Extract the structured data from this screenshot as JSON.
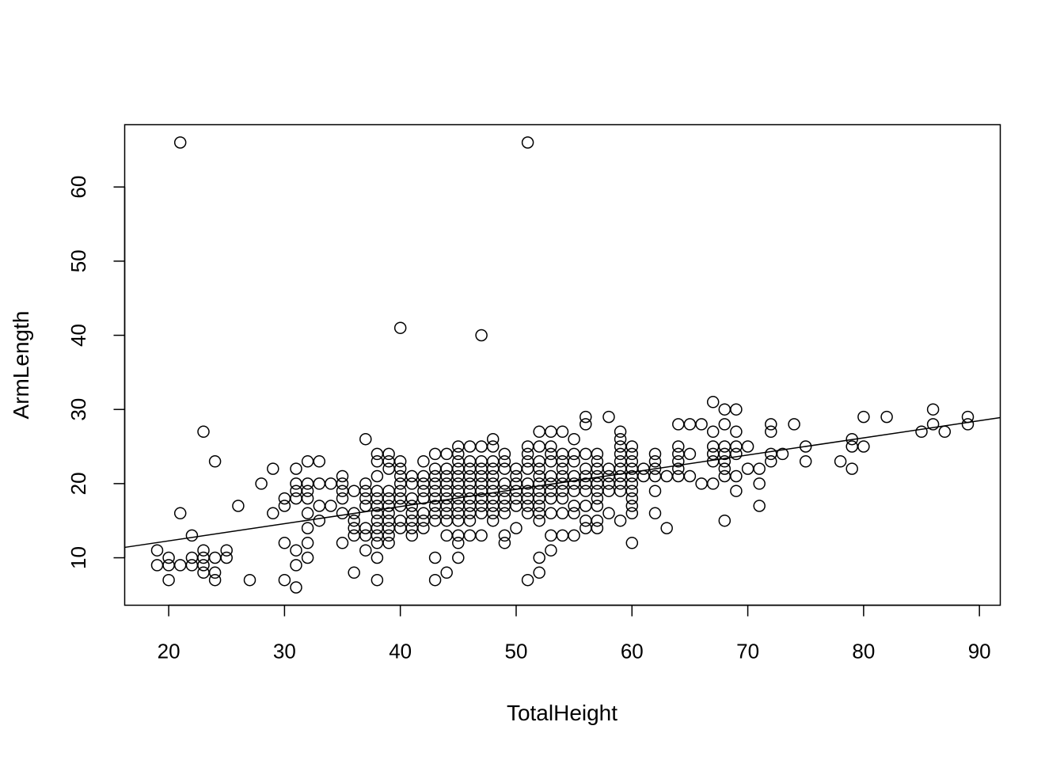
{
  "chart_data": {
    "type": "scatter",
    "title": "",
    "xlabel": "TotalHeight",
    "ylabel": "ArmLength",
    "xlim": [
      16.2,
      91.8
    ],
    "ylim": [
      3.6,
      68.4
    ],
    "x_ticks": [
      20,
      30,
      40,
      50,
      60,
      70,
      80,
      90
    ],
    "y_ticks": [
      10,
      20,
      30,
      40,
      50,
      60
    ],
    "grid": false,
    "legend": "none",
    "point_color": "#000000",
    "regression_line": {
      "from": [
        16.2,
        11.4
      ],
      "to": [
        91.8,
        28.9
      ]
    },
    "points": [
      [
        21,
        66
      ],
      [
        51,
        66
      ],
      [
        40,
        41
      ],
      [
        47,
        40
      ],
      [
        19,
        11
      ],
      [
        19,
        9
      ],
      [
        20,
        10
      ],
      [
        20,
        9
      ],
      [
        20,
        7
      ],
      [
        21,
        16
      ],
      [
        21,
        9
      ],
      [
        22,
        13
      ],
      [
        22,
        10
      ],
      [
        22,
        9
      ],
      [
        23,
        27
      ],
      [
        23,
        11
      ],
      [
        23,
        10
      ],
      [
        23,
        9
      ],
      [
        23,
        8
      ],
      [
        24,
        23
      ],
      [
        24,
        10
      ],
      [
        24,
        8
      ],
      [
        24,
        7
      ],
      [
        25,
        11
      ],
      [
        25,
        10
      ],
      [
        26,
        17
      ],
      [
        27,
        7
      ],
      [
        28,
        20
      ],
      [
        29,
        22
      ],
      [
        29,
        16
      ],
      [
        30,
        18
      ],
      [
        30,
        17
      ],
      [
        30,
        12
      ],
      [
        30,
        7
      ],
      [
        31,
        22
      ],
      [
        31,
        20
      ],
      [
        31,
        19
      ],
      [
        31,
        18
      ],
      [
        31,
        11
      ],
      [
        31,
        9
      ],
      [
        31,
        6
      ],
      [
        32,
        23
      ],
      [
        32,
        20
      ],
      [
        32,
        19
      ],
      [
        32,
        18
      ],
      [
        32,
        16
      ],
      [
        32,
        14
      ],
      [
        32,
        12
      ],
      [
        32,
        10
      ],
      [
        33,
        23
      ],
      [
        33,
        20
      ],
      [
        33,
        17
      ],
      [
        33,
        15
      ],
      [
        34,
        20
      ],
      [
        34,
        17
      ],
      [
        35,
        21
      ],
      [
        35,
        20
      ],
      [
        35,
        19
      ],
      [
        35,
        18
      ],
      [
        35,
        16
      ],
      [
        35,
        12
      ],
      [
        36,
        19
      ],
      [
        36,
        16
      ],
      [
        36,
        15
      ],
      [
        36,
        14
      ],
      [
        36,
        13
      ],
      [
        36,
        8
      ],
      [
        37,
        26
      ],
      [
        37,
        20
      ],
      [
        37,
        19
      ],
      [
        37,
        18
      ],
      [
        37,
        17
      ],
      [
        37,
        14
      ],
      [
        37,
        13
      ],
      [
        37,
        11
      ],
      [
        38,
        24
      ],
      [
        38,
        23
      ],
      [
        38,
        21
      ],
      [
        38,
        19
      ],
      [
        38,
        18
      ],
      [
        38,
        17
      ],
      [
        38,
        16
      ],
      [
        38,
        15
      ],
      [
        38,
        14
      ],
      [
        38,
        13
      ],
      [
        38,
        12
      ],
      [
        38,
        10
      ],
      [
        38,
        7
      ],
      [
        39,
        24
      ],
      [
        39,
        23
      ],
      [
        39,
        22
      ],
      [
        39,
        19
      ],
      [
        39,
        18
      ],
      [
        39,
        17
      ],
      [
        39,
        16
      ],
      [
        39,
        15
      ],
      [
        39,
        14
      ],
      [
        39,
        13
      ],
      [
        39,
        12
      ],
      [
        40,
        23
      ],
      [
        40,
        22
      ],
      [
        40,
        21
      ],
      [
        40,
        20
      ],
      [
        40,
        19
      ],
      [
        40,
        18
      ],
      [
        40,
        17
      ],
      [
        40,
        15
      ],
      [
        40,
        14
      ],
      [
        41,
        21
      ],
      [
        41,
        20
      ],
      [
        41,
        18
      ],
      [
        41,
        17
      ],
      [
        41,
        16
      ],
      [
        41,
        15
      ],
      [
        41,
        14
      ],
      [
        41,
        13
      ],
      [
        42,
        23
      ],
      [
        42,
        21
      ],
      [
        42,
        20
      ],
      [
        42,
        19
      ],
      [
        42,
        18
      ],
      [
        42,
        16
      ],
      [
        42,
        15
      ],
      [
        42,
        14
      ],
      [
        43,
        24
      ],
      [
        43,
        22
      ],
      [
        43,
        21
      ],
      [
        43,
        20
      ],
      [
        43,
        19
      ],
      [
        43,
        18
      ],
      [
        43,
        17
      ],
      [
        43,
        16
      ],
      [
        43,
        15
      ],
      [
        43,
        10
      ],
      [
        43,
        7
      ],
      [
        44,
        24
      ],
      [
        44,
        22
      ],
      [
        44,
        21
      ],
      [
        44,
        20
      ],
      [
        44,
        19
      ],
      [
        44,
        18
      ],
      [
        44,
        17
      ],
      [
        44,
        16
      ],
      [
        44,
        15
      ],
      [
        44,
        13
      ],
      [
        44,
        8
      ],
      [
        45,
        25
      ],
      [
        45,
        24
      ],
      [
        45,
        23
      ],
      [
        45,
        22
      ],
      [
        45,
        21
      ],
      [
        45,
        20
      ],
      [
        45,
        19
      ],
      [
        45,
        18
      ],
      [
        45,
        17
      ],
      [
        45,
        16
      ],
      [
        45,
        15
      ],
      [
        45,
        13
      ],
      [
        45,
        12
      ],
      [
        45,
        10
      ],
      [
        46,
        25
      ],
      [
        46,
        23
      ],
      [
        46,
        22
      ],
      [
        46,
        21
      ],
      [
        46,
        20
      ],
      [
        46,
        19
      ],
      [
        46,
        18
      ],
      [
        46,
        17
      ],
      [
        46,
        16
      ],
      [
        46,
        15
      ],
      [
        46,
        13
      ],
      [
        47,
        25
      ],
      [
        47,
        23
      ],
      [
        47,
        22
      ],
      [
        47,
        21
      ],
      [
        47,
        20
      ],
      [
        47,
        19
      ],
      [
        47,
        18
      ],
      [
        47,
        17
      ],
      [
        47,
        16
      ],
      [
        47,
        13
      ],
      [
        48,
        26
      ],
      [
        48,
        25
      ],
      [
        48,
        23
      ],
      [
        48,
        22
      ],
      [
        48,
        21
      ],
      [
        48,
        20
      ],
      [
        48,
        19
      ],
      [
        48,
        18
      ],
      [
        48,
        17
      ],
      [
        48,
        16
      ],
      [
        48,
        15
      ],
      [
        49,
        24
      ],
      [
        49,
        23
      ],
      [
        49,
        22
      ],
      [
        49,
        20
      ],
      [
        49,
        19
      ],
      [
        49,
        18
      ],
      [
        49,
        17
      ],
      [
        49,
        16
      ],
      [
        49,
        13
      ],
      [
        49,
        12
      ],
      [
        50,
        22
      ],
      [
        50,
        21
      ],
      [
        50,
        20
      ],
      [
        50,
        19
      ],
      [
        50,
        18
      ],
      [
        50,
        17
      ],
      [
        50,
        14
      ],
      [
        51,
        25
      ],
      [
        51,
        24
      ],
      [
        51,
        23
      ],
      [
        51,
        22
      ],
      [
        51,
        20
      ],
      [
        51,
        19
      ],
      [
        51,
        18
      ],
      [
        51,
        17
      ],
      [
        51,
        16
      ],
      [
        51,
        7
      ],
      [
        52,
        27
      ],
      [
        52,
        25
      ],
      [
        52,
        23
      ],
      [
        52,
        22
      ],
      [
        52,
        21
      ],
      [
        52,
        20
      ],
      [
        52,
        19
      ],
      [
        52,
        18
      ],
      [
        52,
        17
      ],
      [
        52,
        16
      ],
      [
        52,
        15
      ],
      [
        52,
        10
      ],
      [
        52,
        8
      ],
      [
        53,
        27
      ],
      [
        53,
        25
      ],
      [
        53,
        24
      ],
      [
        53,
        23
      ],
      [
        53,
        21
      ],
      [
        53,
        20
      ],
      [
        53,
        19
      ],
      [
        53,
        18
      ],
      [
        53,
        16
      ],
      [
        53,
        13
      ],
      [
        53,
        11
      ],
      [
        54,
        27
      ],
      [
        54,
        24
      ],
      [
        54,
        23
      ],
      [
        54,
        22
      ],
      [
        54,
        21
      ],
      [
        54,
        20
      ],
      [
        54,
        19
      ],
      [
        54,
        18
      ],
      [
        54,
        16
      ],
      [
        54,
        13
      ],
      [
        55,
        26
      ],
      [
        55,
        24
      ],
      [
        55,
        23
      ],
      [
        55,
        21
      ],
      [
        55,
        20
      ],
      [
        55,
        19
      ],
      [
        55,
        17
      ],
      [
        55,
        16
      ],
      [
        55,
        13
      ],
      [
        56,
        29
      ],
      [
        56,
        28
      ],
      [
        56,
        24
      ],
      [
        56,
        22
      ],
      [
        56,
        21
      ],
      [
        56,
        20
      ],
      [
        56,
        19
      ],
      [
        56,
        17
      ],
      [
        56,
        15
      ],
      [
        56,
        14
      ],
      [
        57,
        24
      ],
      [
        57,
        23
      ],
      [
        57,
        22
      ],
      [
        57,
        21
      ],
      [
        57,
        20
      ],
      [
        57,
        19
      ],
      [
        57,
        18
      ],
      [
        57,
        17
      ],
      [
        57,
        15
      ],
      [
        57,
        14
      ],
      [
        58,
        29
      ],
      [
        58,
        22
      ],
      [
        58,
        21
      ],
      [
        58,
        20
      ],
      [
        58,
        19
      ],
      [
        58,
        16
      ],
      [
        59,
        27
      ],
      [
        59,
        26
      ],
      [
        59,
        25
      ],
      [
        59,
        24
      ],
      [
        59,
        23
      ],
      [
        59,
        22
      ],
      [
        59,
        21
      ],
      [
        59,
        20
      ],
      [
        59,
        19
      ],
      [
        59,
        15
      ],
      [
        60,
        25
      ],
      [
        60,
        24
      ],
      [
        60,
        23
      ],
      [
        60,
        22
      ],
      [
        60,
        21
      ],
      [
        60,
        20
      ],
      [
        60,
        19
      ],
      [
        60,
        18
      ],
      [
        60,
        17
      ],
      [
        60,
        16
      ],
      [
        60,
        12
      ],
      [
        61,
        22
      ],
      [
        61,
        21
      ],
      [
        62,
        24
      ],
      [
        62,
        23
      ],
      [
        62,
        22
      ],
      [
        62,
        21
      ],
      [
        62,
        19
      ],
      [
        62,
        16
      ],
      [
        63,
        21
      ],
      [
        63,
        14
      ],
      [
        64,
        28
      ],
      [
        64,
        25
      ],
      [
        64,
        24
      ],
      [
        64,
        23
      ],
      [
        64,
        22
      ],
      [
        64,
        21
      ],
      [
        65,
        28
      ],
      [
        65,
        24
      ],
      [
        65,
        21
      ],
      [
        66,
        28
      ],
      [
        66,
        20
      ],
      [
        67,
        31
      ],
      [
        67,
        27
      ],
      [
        67,
        25
      ],
      [
        67,
        24
      ],
      [
        67,
        23
      ],
      [
        67,
        20
      ],
      [
        68,
        30
      ],
      [
        68,
        28
      ],
      [
        68,
        25
      ],
      [
        68,
        24
      ],
      [
        68,
        23
      ],
      [
        68,
        22
      ],
      [
        68,
        21
      ],
      [
        68,
        15
      ],
      [
        69,
        30
      ],
      [
        69,
        27
      ],
      [
        69,
        25
      ],
      [
        69,
        24
      ],
      [
        69,
        21
      ],
      [
        69,
        19
      ],
      [
        70,
        25
      ],
      [
        70,
        22
      ],
      [
        71,
        22
      ],
      [
        71,
        20
      ],
      [
        71,
        17
      ],
      [
        72,
        28
      ],
      [
        72,
        27
      ],
      [
        72,
        24
      ],
      [
        72,
        23
      ],
      [
        73,
        24
      ],
      [
        74,
        28
      ],
      [
        75,
        25
      ],
      [
        75,
        23
      ],
      [
        78,
        23
      ],
      [
        79,
        26
      ],
      [
        79,
        25
      ],
      [
        79,
        22
      ],
      [
        80,
        29
      ],
      [
        80,
        25
      ],
      [
        82,
        29
      ],
      [
        85,
        27
      ],
      [
        86,
        30
      ],
      [
        86,
        28
      ],
      [
        87,
        27
      ],
      [
        89,
        29
      ],
      [
        89,
        28
      ]
    ]
  }
}
